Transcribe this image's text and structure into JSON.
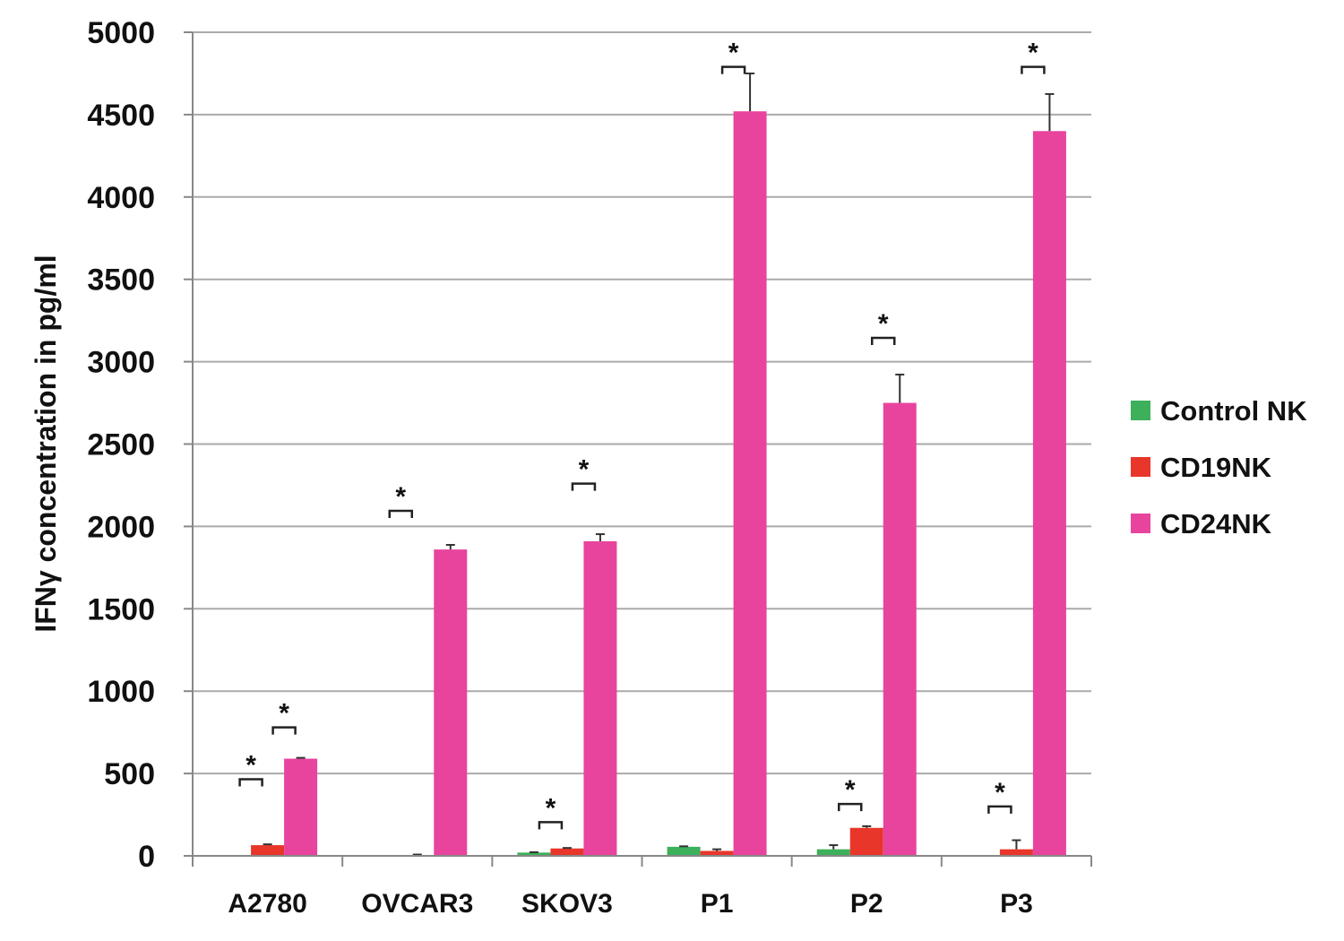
{
  "chart_data": {
    "type": "bar",
    "title": "",
    "xlabel": "",
    "ylabel": "IFNγ concentration in pg/ml",
    "ylim": [
      0,
      5000
    ],
    "yticks": [
      0,
      500,
      1000,
      1500,
      2000,
      2500,
      3000,
      3500,
      4000,
      4500,
      5000
    ],
    "grid": true,
    "legend_position": "right",
    "categories": [
      "A2780",
      "OVCAR3",
      "SKOV3",
      "P1",
      "P2",
      "P3"
    ],
    "series": [
      {
        "name": "Control NK",
        "color": "#3cb05a",
        "values": [
          0,
          0,
          20,
          55,
          40,
          5
        ],
        "error_top": [
          0,
          0,
          22,
          58,
          65,
          5
        ]
      },
      {
        "name": "CD19NK",
        "color": "#e8362b",
        "values": [
          65,
          5,
          45,
          30,
          170,
          40
        ],
        "error_top": [
          70,
          8,
          48,
          40,
          180,
          95
        ]
      },
      {
        "name": "CD24NK",
        "color": "#e8449e",
        "values": [
          590,
          1860,
          1910,
          4520,
          2750,
          4400
        ],
        "error_top": [
          595,
          1888,
          1953,
          4750,
          2922,
          4625
        ]
      }
    ],
    "annotations": [
      {
        "text": "*",
        "group": 0,
        "from": 0,
        "to": 1,
        "y": 465
      },
      {
        "text": "*",
        "group": 0,
        "from": 1,
        "to": 2,
        "y": 780
      },
      {
        "text": "*",
        "group": 1,
        "from": 0,
        "to": 1,
        "y": 2095
      },
      {
        "text": "*",
        "group": 2,
        "from": 0,
        "to": 1,
        "y": 205
      },
      {
        "text": "*",
        "group": 2,
        "from": 1,
        "to": 2,
        "y": 2260
      },
      {
        "text": "*",
        "group": 3,
        "from": 1,
        "to": 2,
        "y": 4790
      },
      {
        "text": "*",
        "group": 4,
        "from": 0,
        "to": 1,
        "y": 315
      },
      {
        "text": "*",
        "group": 4,
        "from": 1,
        "to": 2,
        "y": 3145
      },
      {
        "text": "*",
        "group": 5,
        "from": 0,
        "to": 1,
        "y": 300
      },
      {
        "text": "*",
        "group": 5,
        "from": 1,
        "to": 2,
        "y": 4790
      }
    ]
  }
}
